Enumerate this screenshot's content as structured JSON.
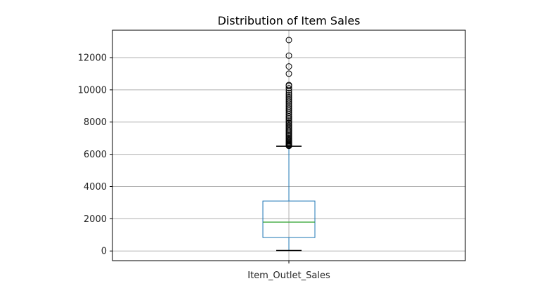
{
  "chart_data": {
    "type": "box",
    "title": "Distribution of Item Sales",
    "xlabel": "",
    "ylabel": "",
    "categories": [
      "Item_Outlet_Sales"
    ],
    "ylim": [
      -600,
      13700
    ],
    "yticks": [
      0,
      2000,
      4000,
      6000,
      8000,
      10000,
      12000
    ],
    "ytick_labels": [
      "0",
      "2000",
      "4000",
      "6000",
      "8000",
      "10000",
      "12000"
    ],
    "grid": true,
    "box": {
      "whisker_low": 33,
      "q1": 834,
      "median": 1794,
      "q3": 3101,
      "whisker_high": 6500
    },
    "outliers": [
      6520,
      6560,
      6600,
      6650,
      6700,
      6760,
      6820,
      6880,
      6950,
      7020,
      7100,
      7180,
      7260,
      7340,
      7420,
      7500,
      7590,
      7680,
      7770,
      7860,
      7950,
      8050,
      8150,
      8250,
      8360,
      8470,
      8580,
      8700,
      8820,
      8940,
      9060,
      9180,
      9300,
      9420,
      9550,
      9680,
      9800,
      9940,
      10100,
      10250,
      10300,
      11000,
      11450,
      12120,
      13090
    ],
    "colors": {
      "box": "#1f77b4",
      "median": "#2ca02c",
      "whisker": "#1f77b4",
      "cap": "#000000",
      "outlier": "#000000",
      "grid": "#b0b0b0",
      "axes": "#000000"
    }
  }
}
